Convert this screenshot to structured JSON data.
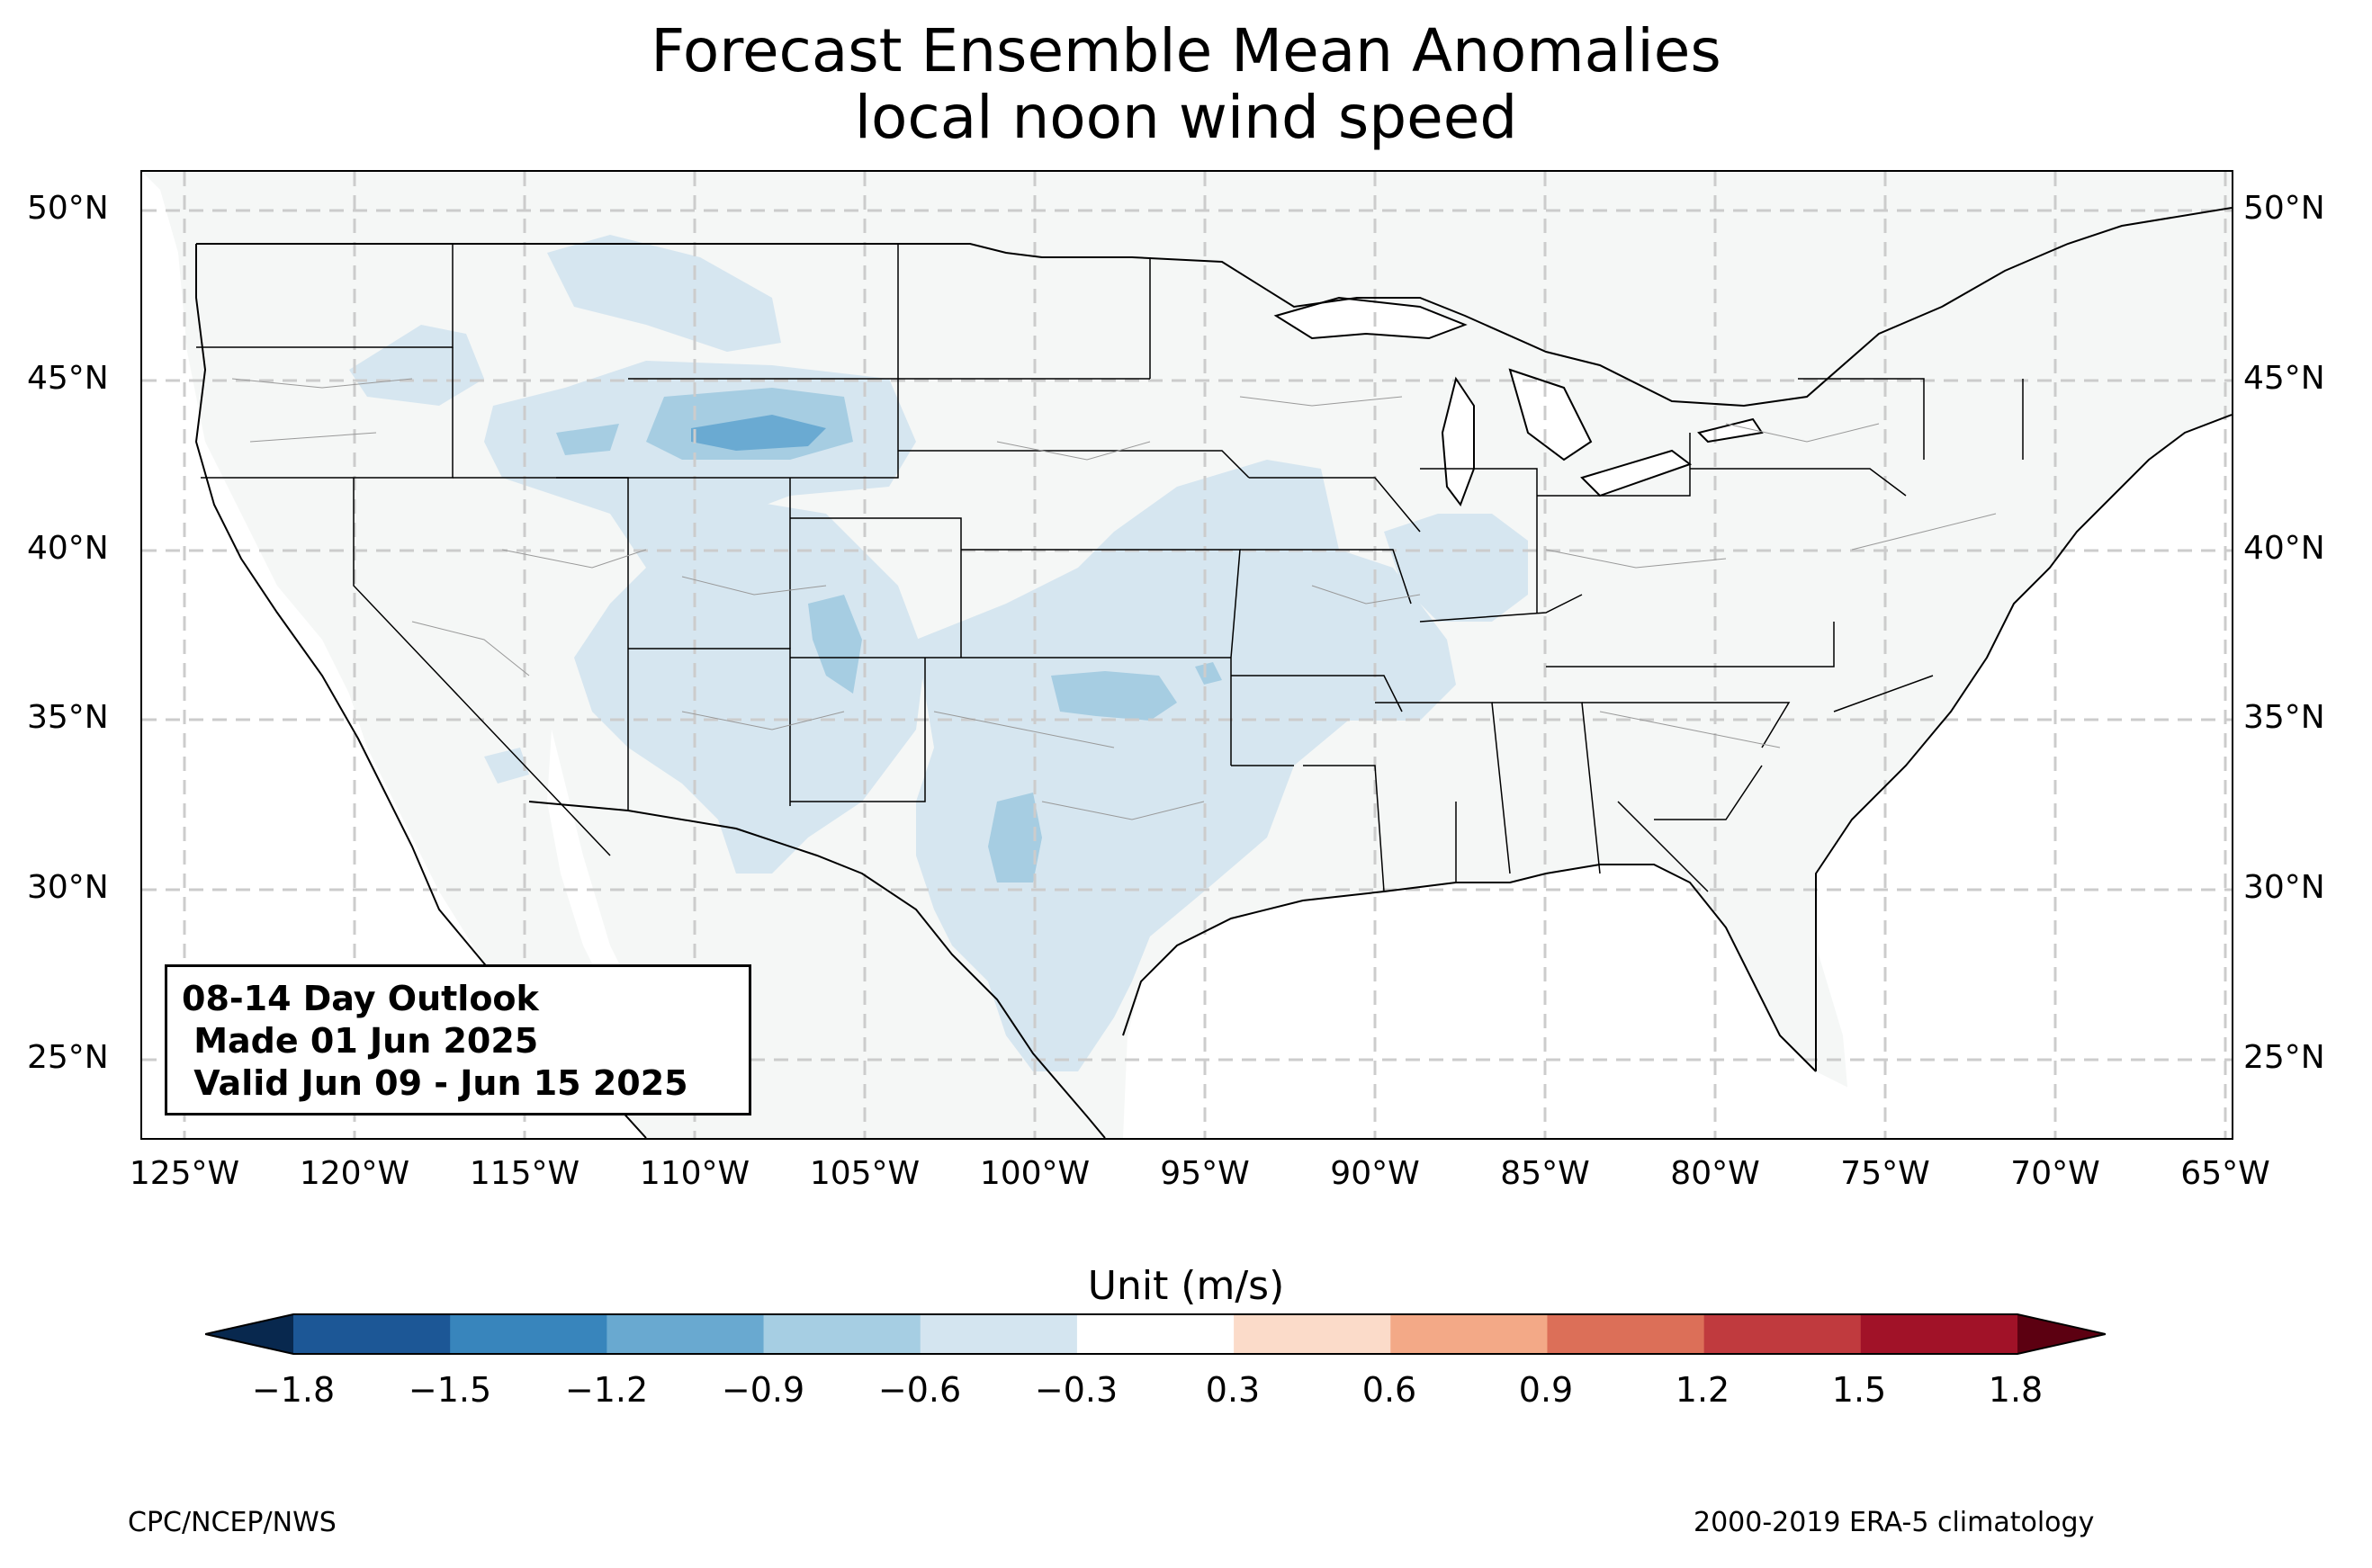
{
  "title": {
    "line1": "Forecast Ensemble Mean Anomalies",
    "line2": "local noon wind speed"
  },
  "map": {
    "lat_labels": [
      "50°N",
      "45°N",
      "40°N",
      "35°N",
      "30°N",
      "25°N"
    ],
    "lon_labels": [
      "125°W",
      "120°W",
      "115°W",
      "110°W",
      "105°W",
      "100°W",
      "95°W",
      "90°W",
      "85°W",
      "80°W",
      "75°W",
      "70°W",
      "65°W"
    ],
    "land_color": "#f5f7f6",
    "anomaly_colors": {
      "light": "#d6e6f0",
      "medium": "#a6cde2",
      "dark": "#6aaad2"
    }
  },
  "outlook": {
    "line1": "08-14 Day Outlook",
    "line2": " Made 01 Jun 2025",
    "line3": " Valid Jun 09 - Jun 15 2025"
  },
  "colorbar": {
    "label": "Unit (m/s)",
    "ticks": [
      "−1.8",
      "−1.5",
      "−1.2",
      "−0.9",
      "−0.6",
      "−0.3",
      "0.3",
      "0.6",
      "0.9",
      "1.2",
      "1.5",
      "1.8"
    ],
    "colors": [
      "#1c5796",
      "#3885bc",
      "#69a9d0",
      "#a6cee3",
      "#d4e5f0",
      "#ffffff",
      "#fbdbc9",
      "#f3a987",
      "#dc6f58",
      "#c03a3e",
      "#a11228"
    ],
    "under_color": "#08284e",
    "over_color": "#5c0011"
  },
  "footer": {
    "left": "CPC/NCEP/NWS",
    "right": "2000-2019 ERA-5 climatology"
  }
}
